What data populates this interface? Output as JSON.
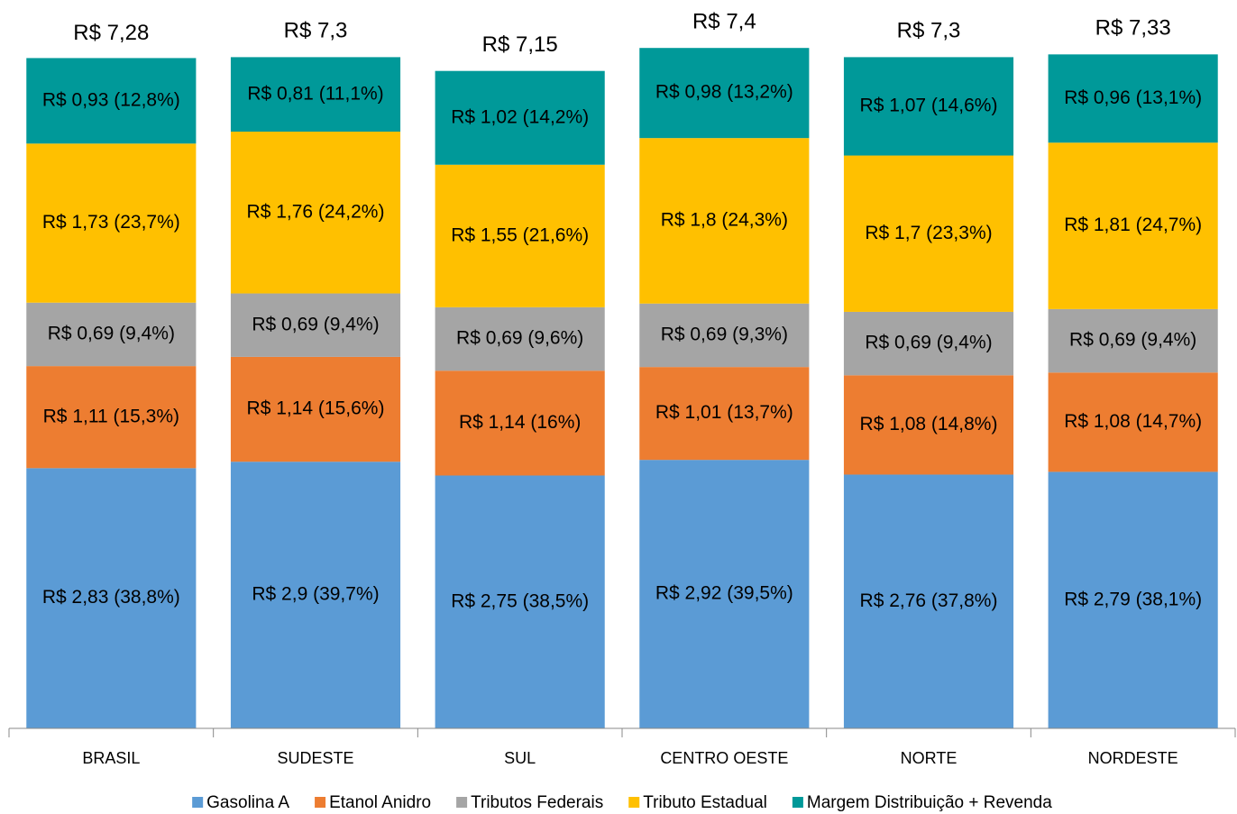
{
  "chart_data": {
    "type": "stacked-bar",
    "categories": [
      "BRASIL",
      "SUDESTE",
      "SUL",
      "CENTRO OESTE",
      "NORTE",
      "NORDESTE"
    ],
    "series": [
      {
        "name": "Gasolina A",
        "color": "#5b9bd5",
        "values": [
          2.83,
          2.9,
          2.75,
          2.92,
          2.76,
          2.79
        ],
        "value_labels": [
          "R$ 2,83 (38,8%)",
          "R$ 2,9 (39,7%)",
          "R$ 2,75 (38,5%)",
          "R$ 2,92 (39,5%)",
          "R$ 2,76 (37,8%)",
          "R$ 2,79 (38,1%)"
        ]
      },
      {
        "name": "Etanol Anidro",
        "color": "#ed7d31",
        "values": [
          1.11,
          1.14,
          1.14,
          1.01,
          1.08,
          1.08
        ],
        "value_labels": [
          "R$ 1,11 (15,3%)",
          "R$ 1,14 (15,6%)",
          "R$ 1,14 (16%)",
          "R$ 1,01 (13,7%)",
          "R$ 1,08 (14,8%)",
          "R$ 1,08 (14,7%)"
        ]
      },
      {
        "name": "Tributos Federais",
        "color": "#a5a5a5",
        "values": [
          0.69,
          0.69,
          0.69,
          0.69,
          0.69,
          0.69
        ],
        "value_labels": [
          "R$ 0,69 (9,4%)",
          "R$ 0,69 (9,4%)",
          "R$ 0,69 (9,6%)",
          "R$ 0,69 (9,3%)",
          "R$ 0,69 (9,4%)",
          "R$ 0,69 (9,4%)"
        ]
      },
      {
        "name": "Tributo Estadual",
        "color": "#ffc000",
        "values": [
          1.73,
          1.76,
          1.55,
          1.8,
          1.7,
          1.81
        ],
        "value_labels": [
          "R$ 1,73 (23,7%)",
          "R$ 1,76 (24,2%)",
          "R$ 1,55 (21,6%)",
          "R$ 1,8 (24,3%)",
          "R$ 1,7 (23,3%)",
          "R$ 1,81 (24,7%)"
        ]
      },
      {
        "name": "Margem Distribuição + Revenda",
        "color": "#009999",
        "values": [
          0.93,
          0.81,
          1.02,
          0.98,
          1.07,
          0.96
        ],
        "value_labels": [
          "R$ 0,93 (12,8%)",
          "R$ 0,81 (11,1%)",
          "R$ 1,02 (14,2%)",
          "R$ 0,98 (13,2%)",
          "R$ 1,07 (14,6%)",
          "R$ 0,96 (13,1%)"
        ]
      }
    ],
    "totals": [
      7.28,
      7.3,
      7.15,
      7.4,
      7.3,
      7.33
    ],
    "total_labels": [
      "R$ 7,28",
      "R$ 7,3",
      "R$ 7,15",
      "R$ 7,4",
      "R$ 7,3",
      "R$ 7,33"
    ],
    "ylim": [
      0,
      7.5
    ],
    "legend": "bottom"
  }
}
